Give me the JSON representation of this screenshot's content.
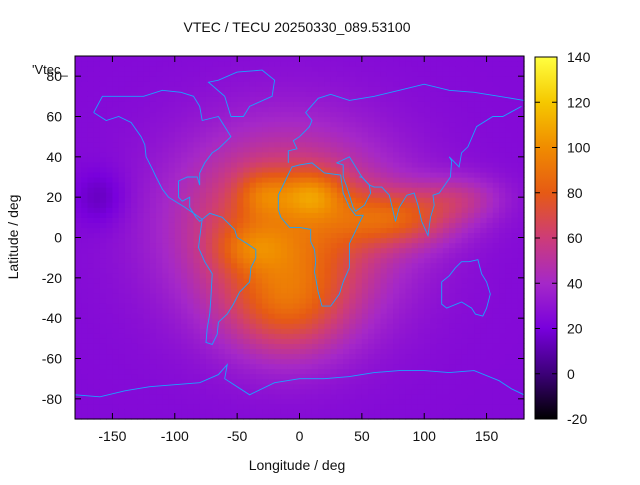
{
  "chart_data": {
    "type": "heatmap",
    "title": "VTEC / TECU 20250330_089.53100",
    "xlabel": "Longitude / deg",
    "ylabel": "Latitude / deg",
    "legend_label": "'Vtec_",
    "xlim": [
      -180,
      180
    ],
    "ylim": [
      -90,
      90
    ],
    "x_ticks": [
      -150,
      -100,
      -50,
      0,
      50,
      100,
      150
    ],
    "x_tick_labels": [
      "-150",
      "-100",
      "-50",
      "0",
      "50",
      "100",
      "150"
    ],
    "y_ticks": [
      -80,
      -60,
      -40,
      -20,
      0,
      20,
      40,
      60,
      80
    ],
    "y_tick_labels": [
      "-80",
      "-60",
      "-40",
      "-20",
      "0",
      "20",
      "40",
      "60",
      "80"
    ],
    "colorbar": {
      "range": [
        -20,
        140
      ],
      "ticks": [
        -20,
        0,
        20,
        40,
        60,
        80,
        100,
        120,
        140
      ],
      "tick_labels": [
        "-20",
        "0",
        "20",
        "40",
        "60",
        "80",
        "100",
        "120",
        "140"
      ],
      "palette": [
        "#000000",
        "#3c0078",
        "#7800dc",
        "#a528c8",
        "#cd3c78",
        "#e65a14",
        "#f08c00",
        "#f5c800",
        "#ffff40"
      ]
    },
    "grid": false,
    "background_value": 25,
    "value_components": [
      {
        "lon": -10,
        "lat": 5,
        "sigma_lon": 60,
        "sigma_lat": 32,
        "amp": 60
      },
      {
        "lon": 10,
        "lat": 22,
        "sigma_lon": 18,
        "sigma_lat": 8,
        "amp": 30
      },
      {
        "lon": -30,
        "lat": 22,
        "sigma_lon": 14,
        "sigma_lat": 8,
        "amp": 20
      },
      {
        "lon": 80,
        "lat": 10,
        "sigma_lon": 35,
        "sigma_lat": 10,
        "amp": 40
      },
      {
        "lon": 130,
        "lat": 20,
        "sigma_lon": 25,
        "sigma_lat": 8,
        "amp": 20
      },
      {
        "lon": -10,
        "lat": -35,
        "sigma_lon": 35,
        "sigma_lat": 18,
        "amp": 35
      },
      {
        "lon": -40,
        "lat": -5,
        "sigma_lon": 20,
        "sigma_lat": 8,
        "amp": 18
      },
      {
        "lon": -160,
        "lat": 20,
        "sigma_lon": 15,
        "sigma_lat": 10,
        "amp": -12
      }
    ],
    "coastlines": [
      {
        "name": "north-america",
        "points": [
          [
            -165,
            62
          ],
          [
            -158,
            70
          ],
          [
            -140,
            70
          ],
          [
            -125,
            70
          ],
          [
            -110,
            73
          ],
          [
            -95,
            72
          ],
          [
            -85,
            70
          ],
          [
            -80,
            65
          ],
          [
            -78,
            58
          ],
          [
            -65,
            60
          ],
          [
            -60,
            55
          ],
          [
            -55,
            50
          ],
          [
            -65,
            44
          ],
          [
            -70,
            42
          ],
          [
            -76,
            37
          ],
          [
            -80,
            32
          ],
          [
            -80,
            26
          ],
          [
            -82,
            30
          ],
          [
            -90,
            30
          ],
          [
            -97,
            28
          ],
          [
            -97,
            20
          ],
          [
            -94,
            18
          ],
          [
            -88,
            20
          ],
          [
            -88,
            15
          ],
          [
            -83,
            10
          ],
          [
            -80,
            8
          ],
          [
            -78,
            9
          ],
          [
            -85,
            12
          ],
          [
            -92,
            15
          ],
          [
            -105,
            20
          ],
          [
            -110,
            24
          ],
          [
            -115,
            30
          ],
          [
            -118,
            34
          ],
          [
            -123,
            40
          ],
          [
            -124,
            46
          ],
          [
            -127,
            50
          ],
          [
            -135,
            57
          ],
          [
            -145,
            60
          ],
          [
            -155,
            58
          ],
          [
            -165,
            62
          ]
        ]
      },
      {
        "name": "south-america",
        "points": [
          [
            -78,
            9
          ],
          [
            -72,
            12
          ],
          [
            -62,
            10
          ],
          [
            -52,
            4
          ],
          [
            -50,
            0
          ],
          [
            -42,
            -3
          ],
          [
            -35,
            -6
          ],
          [
            -35,
            -10
          ],
          [
            -39,
            -15
          ],
          [
            -40,
            -22
          ],
          [
            -48,
            -27
          ],
          [
            -53,
            -33
          ],
          [
            -58,
            -38
          ],
          [
            -65,
            -42
          ],
          [
            -66,
            -48
          ],
          [
            -70,
            -53
          ],
          [
            -75,
            -52
          ],
          [
            -74,
            -45
          ],
          [
            -72,
            -38
          ],
          [
            -71,
            -30
          ],
          [
            -70,
            -18
          ],
          [
            -76,
            -12
          ],
          [
            -81,
            -5
          ],
          [
            -80,
            0
          ],
          [
            -78,
            9
          ]
        ]
      },
      {
        "name": "africa",
        "points": [
          [
            -17,
            21
          ],
          [
            -17,
            14
          ],
          [
            -15,
            10
          ],
          [
            -8,
            5
          ],
          [
            0,
            5
          ],
          [
            9,
            4
          ],
          [
            9,
            -2
          ],
          [
            12,
            -6
          ],
          [
            13,
            -12
          ],
          [
            12,
            -17
          ],
          [
            15,
            -27
          ],
          [
            18,
            -34
          ],
          [
            25,
            -34
          ],
          [
            32,
            -28
          ],
          [
            35,
            -22
          ],
          [
            40,
            -15
          ],
          [
            40,
            -10
          ],
          [
            40,
            -3
          ],
          [
            51,
            11
          ],
          [
            45,
            11
          ],
          [
            40,
            15
          ],
          [
            35,
            22
          ],
          [
            33,
            31
          ],
          [
            20,
            32
          ],
          [
            10,
            37
          ],
          [
            0,
            36
          ],
          [
            -6,
            35
          ],
          [
            -10,
            30
          ],
          [
            -17,
            21
          ]
        ]
      },
      {
        "name": "europe-asia",
        "points": [
          [
            -9,
            37
          ],
          [
            -9,
            43
          ],
          [
            -2,
            44
          ],
          [
            -5,
            48
          ],
          [
            0,
            50
          ],
          [
            5,
            53
          ],
          [
            8,
            55
          ],
          [
            10,
            58
          ],
          [
            5,
            62
          ],
          [
            15,
            69
          ],
          [
            25,
            71
          ],
          [
            40,
            68
          ],
          [
            60,
            70
          ],
          [
            80,
            73
          ],
          [
            100,
            76
          ],
          [
            120,
            73
          ],
          [
            140,
            72
          ],
          [
            160,
            70
          ],
          [
            180,
            68
          ]
        ]
      },
      {
        "name": "asia-south",
        "points": [
          [
            35,
            30
          ],
          [
            35,
            36
          ],
          [
            30,
            37
          ],
          [
            40,
            40
          ],
          [
            50,
            30
          ],
          [
            56,
            26
          ],
          [
            60,
            25
          ],
          [
            66,
            25
          ],
          [
            72,
            21
          ],
          [
            77,
            8
          ],
          [
            80,
            15
          ],
          [
            86,
            21
          ],
          [
            92,
            22
          ],
          [
            95,
            16
          ],
          [
            98,
            8
          ],
          [
            103,
            1
          ],
          [
            105,
            10
          ],
          [
            108,
            16
          ],
          [
            107,
            21
          ],
          [
            112,
            22
          ],
          [
            121,
            30
          ],
          [
            122,
            38
          ],
          [
            120,
            40
          ],
          [
            128,
            35
          ],
          [
            130,
            42
          ],
          [
            135,
            45
          ],
          [
            142,
            55
          ],
          [
            155,
            60
          ],
          [
            163,
            60
          ],
          [
            178,
            65
          ]
        ]
      },
      {
        "name": "arabia",
        "points": [
          [
            35,
            30
          ],
          [
            38,
            25
          ],
          [
            43,
            15
          ],
          [
            45,
            13
          ],
          [
            52,
            16
          ],
          [
            57,
            22
          ],
          [
            56,
            26
          ],
          [
            50,
            30
          ],
          [
            48,
            30
          ]
        ]
      },
      {
        "name": "australia",
        "points": [
          [
            114,
            -22
          ],
          [
            114,
            -33
          ],
          [
            118,
            -35
          ],
          [
            130,
            -32
          ],
          [
            138,
            -35
          ],
          [
            141,
            -38
          ],
          [
            147,
            -39
          ],
          [
            150,
            -35
          ],
          [
            153,
            -28
          ],
          [
            150,
            -22
          ],
          [
            146,
            -18
          ],
          [
            143,
            -11
          ],
          [
            136,
            -12
          ],
          [
            130,
            -12
          ],
          [
            125,
            -15
          ],
          [
            120,
            -19
          ],
          [
            114,
            -22
          ]
        ]
      },
      {
        "name": "greenland",
        "points": [
          [
            -55,
            60
          ],
          [
            -45,
            60
          ],
          [
            -40,
            65
          ],
          [
            -22,
            70
          ],
          [
            -20,
            78
          ],
          [
            -30,
            83
          ],
          [
            -50,
            82
          ],
          [
            -65,
            78
          ],
          [
            -73,
            77
          ],
          [
            -60,
            70
          ],
          [
            -55,
            60
          ]
        ]
      },
      {
        "name": "antarctica",
        "points": [
          [
            -180,
            -78
          ],
          [
            -160,
            -79
          ],
          [
            -140,
            -76
          ],
          [
            -120,
            -74
          ],
          [
            -100,
            -73
          ],
          [
            -80,
            -72
          ],
          [
            -65,
            -68
          ],
          [
            -58,
            -63
          ],
          [
            -60,
            -70
          ],
          [
            -40,
            -78
          ],
          [
            -20,
            -72
          ],
          [
            0,
            -70
          ],
          [
            20,
            -70
          ],
          [
            40,
            -69
          ],
          [
            60,
            -67
          ],
          [
            80,
            -66
          ],
          [
            100,
            -66
          ],
          [
            120,
            -67
          ],
          [
            140,
            -66
          ],
          [
            160,
            -71
          ],
          [
            170,
            -75
          ],
          [
            180,
            -78
          ]
        ]
      }
    ]
  }
}
